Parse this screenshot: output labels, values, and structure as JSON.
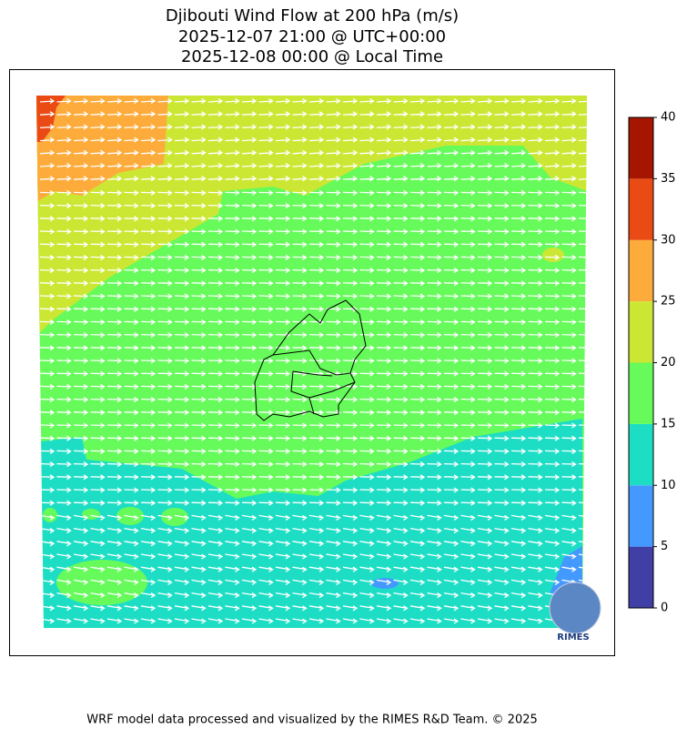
{
  "header": {
    "title_lines": [
      "Djibouti Wind Flow at 200 hPa (m/s)",
      "2025-12-07 21:00 @ UTC+00:00",
      "2025-12-08 00:00 @ Local Time"
    ]
  },
  "colorbar": {
    "lim": [
      0,
      40
    ],
    "ticks": [
      0,
      5,
      10,
      15,
      20,
      25,
      30,
      35,
      40
    ],
    "colors": [
      "#3f3fa6",
      "#4499ff",
      "#1ddec5",
      "#66fa5a",
      "#cce733",
      "#fdab3a",
      "#ea4b15",
      "#a61500"
    ]
  },
  "logo": {
    "text": "RIMES"
  },
  "footer": {
    "text": "WRF model data processed and visualized by the RIMES R&D Team. © 2025"
  }
}
